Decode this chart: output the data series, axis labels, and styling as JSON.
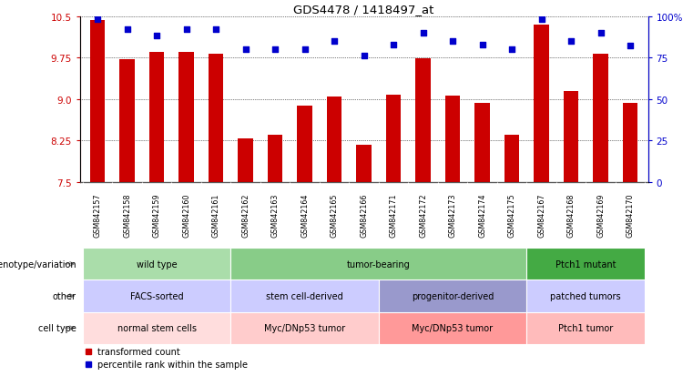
{
  "title": "GDS4478 / 1418497_at",
  "samples": [
    "GSM842157",
    "GSM842158",
    "GSM842159",
    "GSM842160",
    "GSM842161",
    "GSM842162",
    "GSM842163",
    "GSM842164",
    "GSM842165",
    "GSM842166",
    "GSM842171",
    "GSM842172",
    "GSM842173",
    "GSM842174",
    "GSM842175",
    "GSM842167",
    "GSM842168",
    "GSM842169",
    "GSM842170"
  ],
  "bar_values": [
    10.42,
    9.72,
    9.85,
    9.85,
    9.82,
    8.28,
    8.35,
    8.88,
    9.05,
    8.18,
    9.08,
    9.73,
    9.06,
    8.93,
    8.35,
    10.35,
    9.15,
    9.82,
    8.93
  ],
  "dot_values": [
    98,
    92,
    88,
    92,
    92,
    80,
    80,
    80,
    85,
    76,
    83,
    90,
    85,
    83,
    80,
    98,
    85,
    90,
    82
  ],
  "ylim_left": [
    7.5,
    10.5
  ],
  "ylim_right": [
    0,
    100
  ],
  "yticks_left": [
    7.5,
    8.25,
    9.0,
    9.75,
    10.5
  ],
  "yticks_right": [
    0,
    25,
    50,
    75,
    100
  ],
  "ytick_labels_right": [
    "0",
    "25",
    "50",
    "75",
    "100%"
  ],
  "bar_color": "#cc0000",
  "dot_color": "#0000cc",
  "bar_bottom": 7.5,
  "dotted_grid_y": [
    7.5,
    8.25,
    9.0,
    9.75,
    10.5
  ],
  "groups": [
    {
      "label": "genotype/variation",
      "sections": [
        {
          "text": "wild type",
          "start": 0,
          "end": 5,
          "color": "#aaddaa"
        },
        {
          "text": "tumor-bearing",
          "start": 5,
          "end": 15,
          "color": "#88cc88"
        },
        {
          "text": "Ptch1 mutant",
          "start": 15,
          "end": 19,
          "color": "#44aa44"
        }
      ]
    },
    {
      "label": "other",
      "sections": [
        {
          "text": "FACS-sorted",
          "start": 0,
          "end": 5,
          "color": "#ccccff"
        },
        {
          "text": "stem cell-derived",
          "start": 5,
          "end": 10,
          "color": "#ccccff"
        },
        {
          "text": "progenitor-derived",
          "start": 10,
          "end": 15,
          "color": "#9999cc"
        },
        {
          "text": "patched tumors",
          "start": 15,
          "end": 19,
          "color": "#ccccff"
        }
      ]
    },
    {
      "label": "cell type",
      "sections": [
        {
          "text": "normal stem cells",
          "start": 0,
          "end": 5,
          "color": "#ffdddd"
        },
        {
          "text": "Myc/DNp53 tumor",
          "start": 5,
          "end": 10,
          "color": "#ffcccc"
        },
        {
          "text": "Myc/DNp53 tumor",
          "start": 10,
          "end": 15,
          "color": "#ff9999"
        },
        {
          "text": "Ptch1 tumor",
          "start": 15,
          "end": 19,
          "color": "#ffbbbb"
        }
      ]
    }
  ],
  "legend_items": [
    {
      "label": "transformed count",
      "color": "#cc0000"
    },
    {
      "label": "percentile rank within the sample",
      "color": "#0000cc"
    }
  ]
}
